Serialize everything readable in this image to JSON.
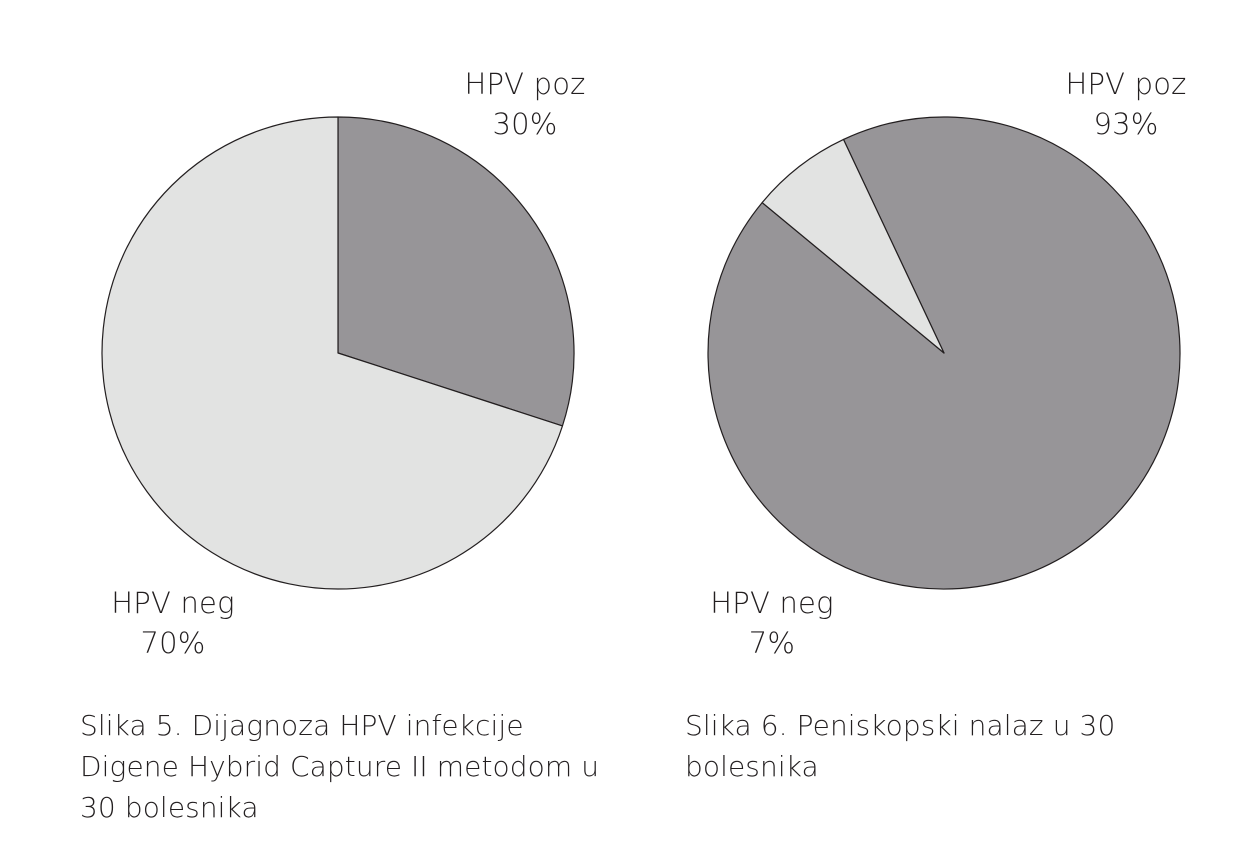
{
  "chart_data": [
    {
      "type": "pie",
      "title": "",
      "slices": [
        {
          "label": "HPV poz",
          "percent_label": "30%",
          "value": 30,
          "color": "#979598"
        },
        {
          "label": "HPV neg",
          "percent_label": "70%",
          "value": 70,
          "color": "#e2e3e2"
        }
      ],
      "caption_lines": [
        "Slika 5. Dijagnoza HPV infekcije",
        "Digene Hybrid Capture II metodom u",
        "30 bolesnika"
      ]
    },
    {
      "type": "pie",
      "title": "",
      "slices": [
        {
          "label": "HPV poz",
          "percent_label": "93%",
          "value": 93,
          "color": "#979598"
        },
        {
          "label": "HPV neg",
          "percent_label": "7%",
          "value": 7,
          "color": "#e2e3e2"
        }
      ],
      "caption_lines": [
        "Slika 6. Peniskopski nalaz u 30",
        "bolesnika"
      ]
    }
  ]
}
